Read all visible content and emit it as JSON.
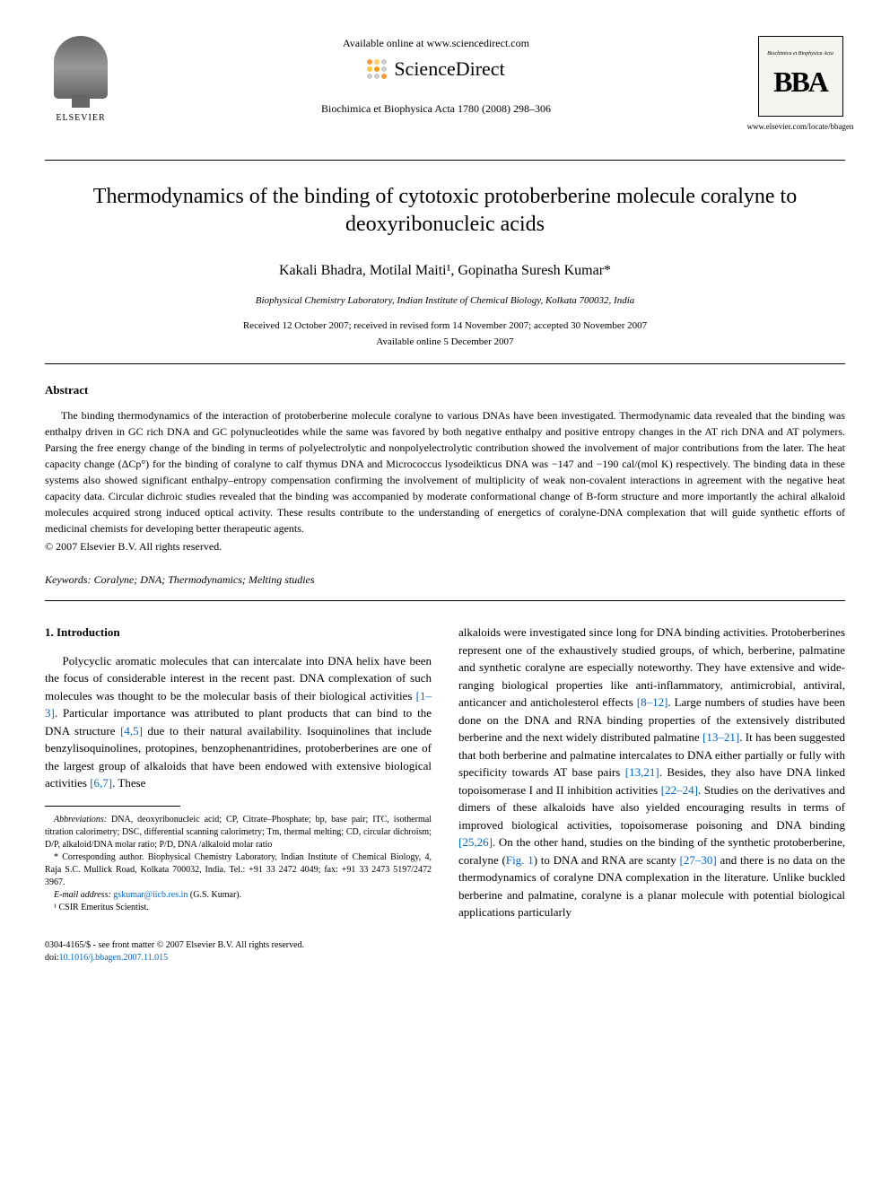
{
  "header": {
    "elsevier_label": "ELSEVIER",
    "available_online": "Available online at www.sciencedirect.com",
    "sciencedirect_text": "ScienceDirect",
    "sd_dot_colors": [
      "#ff9933",
      "#ffcc66",
      "#cccccc",
      "#ffcc33",
      "#ff9900",
      "#cccccc",
      "#cccccc",
      "#cccccc",
      "#ff9933"
    ],
    "journal_ref": "Biochimica et Biophysica Acta 1780 (2008) 298–306",
    "bba_top": "Biochimica et Biophysica Acta",
    "bba_main": "BBA",
    "bba_url": "www.elsevier.com/locate/bbagen"
  },
  "title": "Thermodynamics of the binding of cytotoxic protoberberine molecule coralyne to deoxyribonucleic acids",
  "authors": "Kakali Bhadra, Motilal Maiti¹, Gopinatha Suresh Kumar*",
  "affiliation": "Biophysical Chemistry Laboratory, Indian Institute of Chemical Biology, Kolkata 700032, India",
  "dates_line1": "Received 12 October 2007; received in revised form 14 November 2007; accepted 30 November 2007",
  "dates_line2": "Available online 5 December 2007",
  "abstract": {
    "heading": "Abstract",
    "text": "The binding thermodynamics of the interaction of protoberberine molecule coralyne to various DNAs have been investigated. Thermodynamic data revealed that the binding was enthalpy driven in GC rich DNA and GC polynucleotides while the same was favored by both negative enthalpy and positive entropy changes in the AT rich DNA and AT polymers. Parsing the free energy change of the binding in terms of polyelectrolytic and nonpolyelectrolytic contribution showed the involvement of major contributions from the later. The heat capacity change (ΔCp°) for the binding of coralyne to calf thymus DNA and Micrococcus lysodeikticus DNA was −147 and −190 cal/(mol K) respectively. The binding data in these systems also showed significant enthalpy–entropy compensation confirming the involvement of multiplicity of weak non-covalent interactions in agreement with the negative heat capacity data. Circular dichroic studies revealed that the binding was accompanied by moderate conformational change of B-form structure and more importantly the achiral alkaloid molecules acquired strong induced optical activity. These results contribute to the understanding of energetics of coralyne-DNA complexation that will guide synthetic efforts of medicinal chemists for developing better therapeutic agents.",
    "copyright": "© 2007 Elsevier B.V. All rights reserved."
  },
  "keywords_label": "Keywords:",
  "keywords_text": " Coralyne; DNA; Thermodynamics; Melting studies",
  "body": {
    "section_heading": "1. Introduction",
    "left_col_pre": "Polycyclic aromatic molecules that can intercalate into DNA helix have been the focus of considerable interest in the recent past. DNA complexation of such molecules was thought to be the molecular basis of their biological activities ",
    "ref1": "[1–3]",
    "left_mid1": ". Particular importance was attributed to plant products that can bind to the DNA structure ",
    "ref2": "[4,5]",
    "left_mid2": " due to their natural availability. Isoquinolines that include benzylisoquinolines, protopines, benzophenantridines, protoberberines are one of the largest group of alkaloids that have been endowed with extensive biological activities ",
    "ref3": "[6,7]",
    "left_end": ". These",
    "right_pre": "alkaloids were investigated since long for DNA binding activities. Protoberberines represent one of the exhaustively studied groups, of which, berberine, palmatine and synthetic coralyne are especially noteworthy. They have extensive and wide-ranging biological properties like anti-inflammatory, antimicrobial, antiviral, anticancer and anticholesterol effects ",
    "ref4": "[8–12]",
    "right_mid1": ". Large numbers of studies have been done on the DNA and RNA binding properties of the extensively distributed berberine and the next widely distributed palmatine ",
    "ref5": "[13–21]",
    "right_mid2": ". It has been suggested that both berberine and palmatine intercalates to DNA either partially or fully with specificity towards AT base pairs ",
    "ref6": "[13,21]",
    "right_mid3": ". Besides, they also have DNA linked topoisomerase I and II inhibition activities ",
    "ref7": "[22–24]",
    "right_mid4": ". Studies on the derivatives and dimers of these alkaloids have also yielded encouraging results in terms of improved biological activities, topoisomerase poisoning and DNA binding ",
    "ref8": "[25,26]",
    "right_mid5": ". On the other hand, studies on the binding of the synthetic protoberberine, coralyne (",
    "fig1": "Fig. 1",
    "right_mid6": ") to DNA and RNA are scanty ",
    "ref9": "[27–30]",
    "right_end": " and there is no data on the thermodynamics of coralyne DNA complexation in the literature. Unlike buckled berberine and palmatine, coralyne is a planar molecule with potential biological applications particularly"
  },
  "footnotes": {
    "abbrev_label": "Abbreviations:",
    "abbrev_text": " DNA, deoxyribonucleic acid; CP, Citrate–Phosphate; bp, base pair; ITC, isothermal titration calorimetry; DSC, differential scanning calorimetry; Tm, thermal melting; CD, circular dichroism; D/P, alkaloid/DNA molar ratio; P/D, DNA /alkaloid molar ratio",
    "corr_label": "* Corresponding author.",
    "corr_text": " Biophysical Chemistry Laboratory, Indian Institute of Chemical Biology, 4, Raja S.C. Mullick Road, Kolkata 700032, India. Tel.: +91 33 2472 4049; fax: +91 33 2473 5197/2472 3967.",
    "email_label": "E-mail address:",
    "email": "gskumar@iicb.res.in",
    "email_suffix": " (G.S. Kumar).",
    "note1": "¹ CSIR Emeritus Scientist."
  },
  "footer": {
    "line1": "0304-4165/$ - see front matter © 2007 Elsevier B.V. All rights reserved.",
    "doi_label": "doi:",
    "doi": "10.1016/j.bbagen.2007.11.015"
  },
  "colors": {
    "link": "#0066cc",
    "text": "#000000",
    "bg": "#ffffff"
  }
}
